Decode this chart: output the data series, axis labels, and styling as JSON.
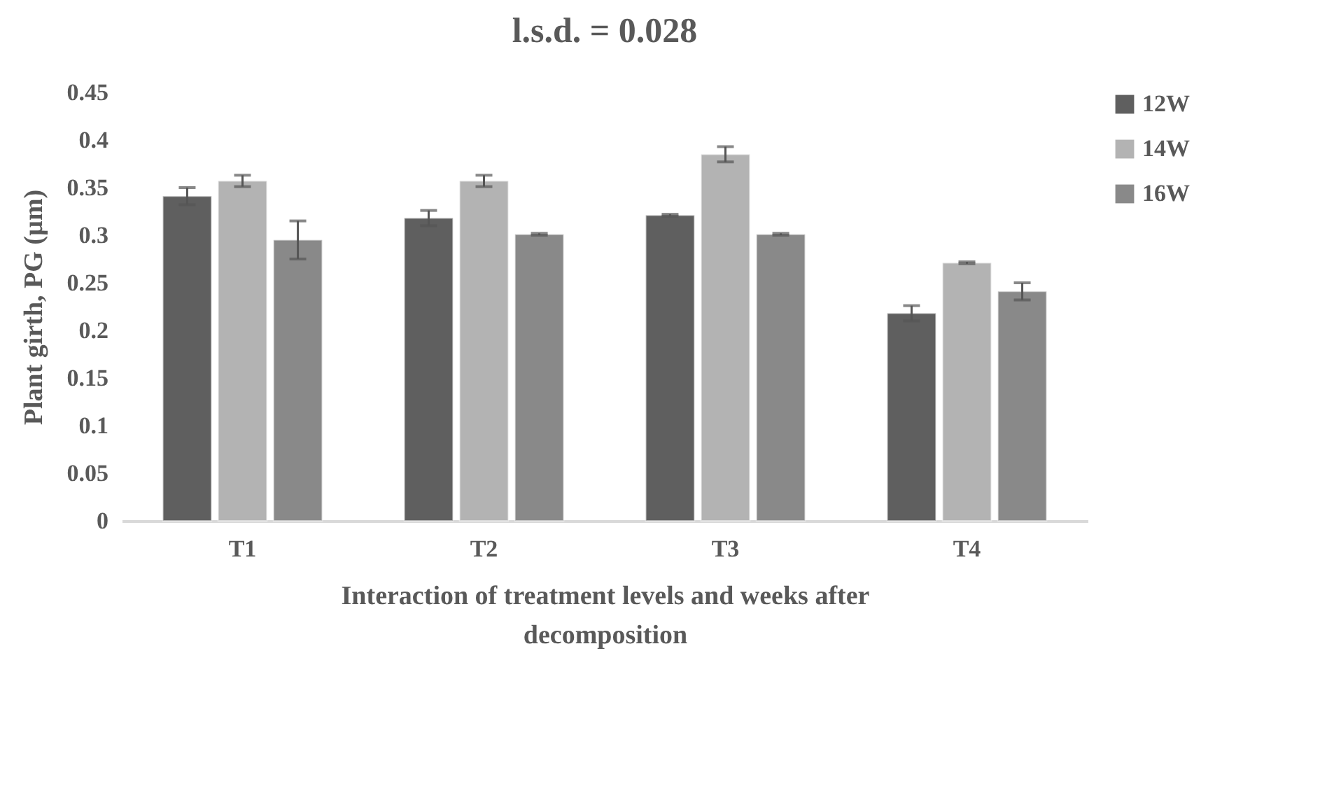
{
  "chart_data": {
    "type": "bar",
    "title": "l.s.d. = 0.028",
    "xlabel": "Interaction of treatment levels and weeks after decomposition",
    "ylabel": "Plant girth, PG (µm)",
    "categories": [
      "T1",
      "T2",
      "T3",
      "T4"
    ],
    "series": [
      {
        "name": "12W",
        "color": "#5f5f5f",
        "values": [
          0.341,
          0.318,
          0.321,
          0.218
        ],
        "errors": [
          0.009,
          0.008,
          0.001,
          0.008
        ]
      },
      {
        "name": "14W",
        "color": "#b3b3b3",
        "values": [
          0.357,
          0.357,
          0.385,
          0.271
        ],
        "errors": [
          0.006,
          0.006,
          0.008,
          0.001
        ]
      },
      {
        "name": "16W",
        "color": "#898989",
        "values": [
          0.295,
          0.301,
          0.301,
          0.241
        ],
        "errors": [
          0.02,
          0.001,
          0.001,
          0.009
        ]
      }
    ],
    "ylim": [
      0,
      0.45
    ],
    "yticks": [
      0,
      0.05,
      0.1,
      0.15,
      0.2,
      0.25,
      0.3,
      0.35,
      0.4,
      0.45
    ],
    "grid": false,
    "legend": "right"
  }
}
